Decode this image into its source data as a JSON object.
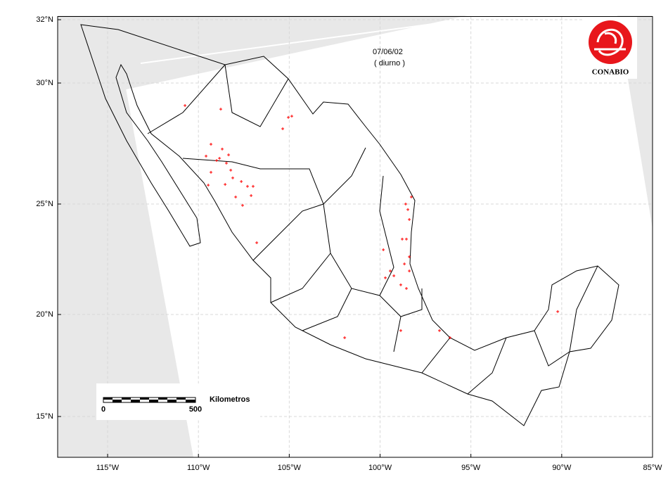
{
  "map": {
    "date": "07/06/02",
    "period": "( diurno )",
    "logo_text": "CONABIO",
    "scale_bar": {
      "label": "Kilometros",
      "start": 0,
      "end": 500
    },
    "xlim": [
      -117.75,
      -85
    ],
    "xticks": [
      {
        "value": -115,
        "label": "115°W"
      },
      {
        "value": -110,
        "label": "110°W"
      },
      {
        "value": -105,
        "label": "105°W"
      },
      {
        "value": -100,
        "label": "100°W"
      },
      {
        "value": -95,
        "label": "95°W"
      },
      {
        "value": -90,
        "label": "90°W"
      },
      {
        "value": -85,
        "label": "85°W"
      }
    ],
    "ylim": [
      13.0,
      32.1
    ],
    "yticks": [
      {
        "value": 15,
        "label": "15°N"
      },
      {
        "value": 20,
        "label": "20°N"
      },
      {
        "value": 25,
        "label": "25°N"
      },
      {
        "value": 30,
        "label": "30°N"
      },
      {
        "value": 32,
        "label": "32°N"
      }
    ],
    "grid": true,
    "fire_points": {
      "color": "#ff0000",
      "lon": [
        -110.74,
        -108.77,
        -105.05,
        -104.86,
        -105.36,
        -109.31,
        -108.69,
        -109.58,
        -109.0,
        -108.46,
        -108.22,
        -109.31,
        -108.11,
        -107.64,
        -108.53,
        -109.46,
        -107.3,
        -107.1,
        -107.57,
        -107.95,
        -106.99,
        -106.79,
        -108.84,
        -108.34,
        -98.47,
        -98.39,
        -98.55,
        -98.39,
        -98.66,
        -98.78,
        -99.82,
        -99.44,
        -99.24,
        -98.86,
        -98.39,
        -98.55,
        -99.71,
        -98.86,
        -101.95,
        -96.73,
        -96.15,
        -90.22,
        -98.59,
        -98.28
      ],
      "lat": [
        29.07,
        28.92,
        28.58,
        28.63,
        28.11,
        27.47,
        27.27,
        26.98,
        26.8,
        26.69,
        26.4,
        26.31,
        26.08,
        25.93,
        25.81,
        25.78,
        25.73,
        25.35,
        24.94,
        25.29,
        25.73,
        23.25,
        26.89,
        27.03,
        24.75,
        24.3,
        23.41,
        22.61,
        22.29,
        23.41,
        22.93,
        21.97,
        21.75,
        21.34,
        21.97,
        21.18,
        21.66,
        19.21,
        18.86,
        19.21,
        18.86,
        20.13,
        25.0,
        25.29
      ]
    }
  }
}
